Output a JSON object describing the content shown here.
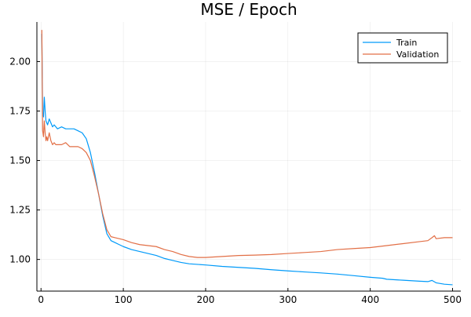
{
  "chart_data": {
    "type": "line",
    "title": "MSE / Epoch",
    "xlabel": "",
    "ylabel": "",
    "xlim": [
      -5,
      510
    ],
    "ylim": [
      0.84,
      2.2
    ],
    "xticks": [
      0,
      100,
      200,
      300,
      400,
      500
    ],
    "yticks": [
      1.0,
      1.25,
      1.5,
      1.75,
      2.0
    ],
    "ytick_labels": [
      "1.00",
      "1.25",
      "1.50",
      "1.75",
      "2.00"
    ],
    "grid": true,
    "legend_position": "top-right",
    "series": [
      {
        "name": "Train",
        "color": "#009af9",
        "x": [
          1,
          2,
          3,
          4,
          5,
          6,
          7,
          8,
          10,
          12,
          14,
          16,
          18,
          20,
          25,
          30,
          35,
          40,
          45,
          50,
          55,
          60,
          65,
          70,
          75,
          80,
          85,
          90,
          95,
          100,
          110,
          120,
          130,
          140,
          150,
          160,
          170,
          180,
          190,
          200,
          220,
          240,
          260,
          280,
          300,
          320,
          340,
          360,
          380,
          400,
          415,
          420,
          440,
          460,
          470,
          475,
          480,
          490,
          500
        ],
        "y": [
          2.14,
          1.74,
          1.72,
          1.82,
          1.75,
          1.7,
          1.69,
          1.68,
          1.71,
          1.69,
          1.67,
          1.68,
          1.67,
          1.66,
          1.67,
          1.66,
          1.66,
          1.66,
          1.65,
          1.64,
          1.61,
          1.54,
          1.44,
          1.33,
          1.22,
          1.13,
          1.095,
          1.085,
          1.075,
          1.065,
          1.05,
          1.04,
          1.03,
          1.02,
          1.005,
          0.995,
          0.985,
          0.978,
          0.975,
          0.972,
          0.965,
          0.96,
          0.955,
          0.948,
          0.942,
          0.937,
          0.932,
          0.926,
          0.918,
          0.91,
          0.905,
          0.9,
          0.895,
          0.89,
          0.888,
          0.894,
          0.882,
          0.875,
          0.872
        ]
      },
      {
        "name": "Validation",
        "color": "#e26f46",
        "x": [
          1,
          2,
          3,
          4,
          5,
          6,
          7,
          8,
          10,
          12,
          14,
          16,
          18,
          20,
          25,
          30,
          35,
          40,
          45,
          50,
          55,
          60,
          65,
          70,
          75,
          80,
          85,
          90,
          95,
          100,
          110,
          120,
          130,
          140,
          150,
          160,
          170,
          180,
          190,
          200,
          220,
          240,
          260,
          280,
          300,
          320,
          340,
          360,
          380,
          400,
          420,
          440,
          460,
          470,
          475,
          478,
          480,
          490,
          500
        ],
        "y": [
          2.16,
          1.65,
          1.62,
          1.7,
          1.64,
          1.6,
          1.62,
          1.6,
          1.64,
          1.6,
          1.58,
          1.59,
          1.58,
          1.58,
          1.58,
          1.59,
          1.57,
          1.57,
          1.57,
          1.56,
          1.54,
          1.5,
          1.42,
          1.33,
          1.23,
          1.15,
          1.115,
          1.11,
          1.105,
          1.1,
          1.085,
          1.075,
          1.07,
          1.065,
          1.05,
          1.04,
          1.025,
          1.015,
          1.01,
          1.01,
          1.015,
          1.02,
          1.022,
          1.025,
          1.03,
          1.035,
          1.04,
          1.05,
          1.055,
          1.06,
          1.07,
          1.08,
          1.09,
          1.095,
          1.11,
          1.12,
          1.105,
          1.11,
          1.11
        ]
      }
    ]
  }
}
